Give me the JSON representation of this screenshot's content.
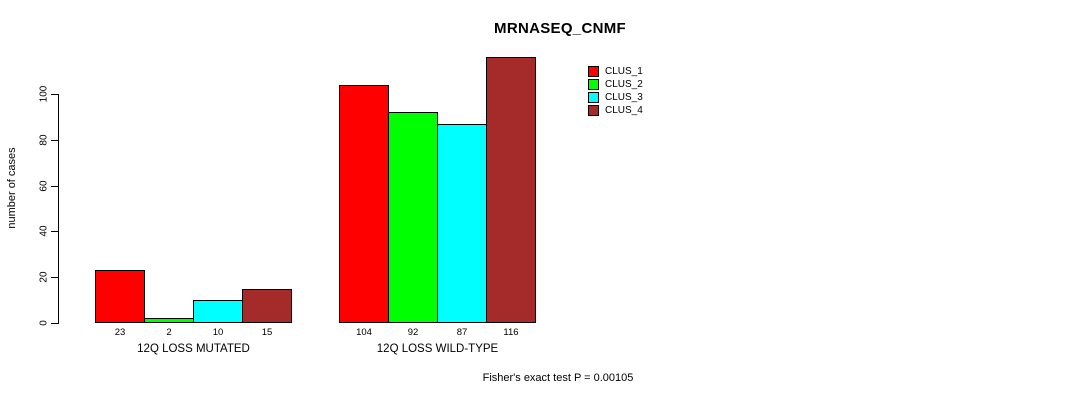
{
  "page": {
    "background_color": "#FFFFFF",
    "text_color": "#000000"
  },
  "chart_data": {
    "type": "bar",
    "title": "MRNASEQ_CNMF",
    "xlabel": "",
    "ylabel": "number of cases",
    "footer": "Fisher's exact test P = 0.00105",
    "categories": [
      "12Q LOSS MUTATED",
      "12Q LOSS WILD-TYPE"
    ],
    "series": [
      {
        "name": "CLUS_1",
        "color": "#FF0000",
        "values": [
          23,
          104
        ]
      },
      {
        "name": "CLUS_2",
        "color": "#00FF00",
        "values": [
          2,
          92
        ]
      },
      {
        "name": "CLUS_3",
        "color": "#00FFFF",
        "values": [
          10,
          87
        ]
      },
      {
        "name": "CLUS_4",
        "color": "#A52A2A",
        "values": [
          15,
          116
        ]
      }
    ],
    "bar_value_labels": true,
    "yticks": [
      0,
      20,
      40,
      60,
      80,
      100
    ],
    "ylim": [
      0,
      120
    ],
    "grid": false,
    "legend_position": "upper-right",
    "axis_color": "#000000"
  }
}
